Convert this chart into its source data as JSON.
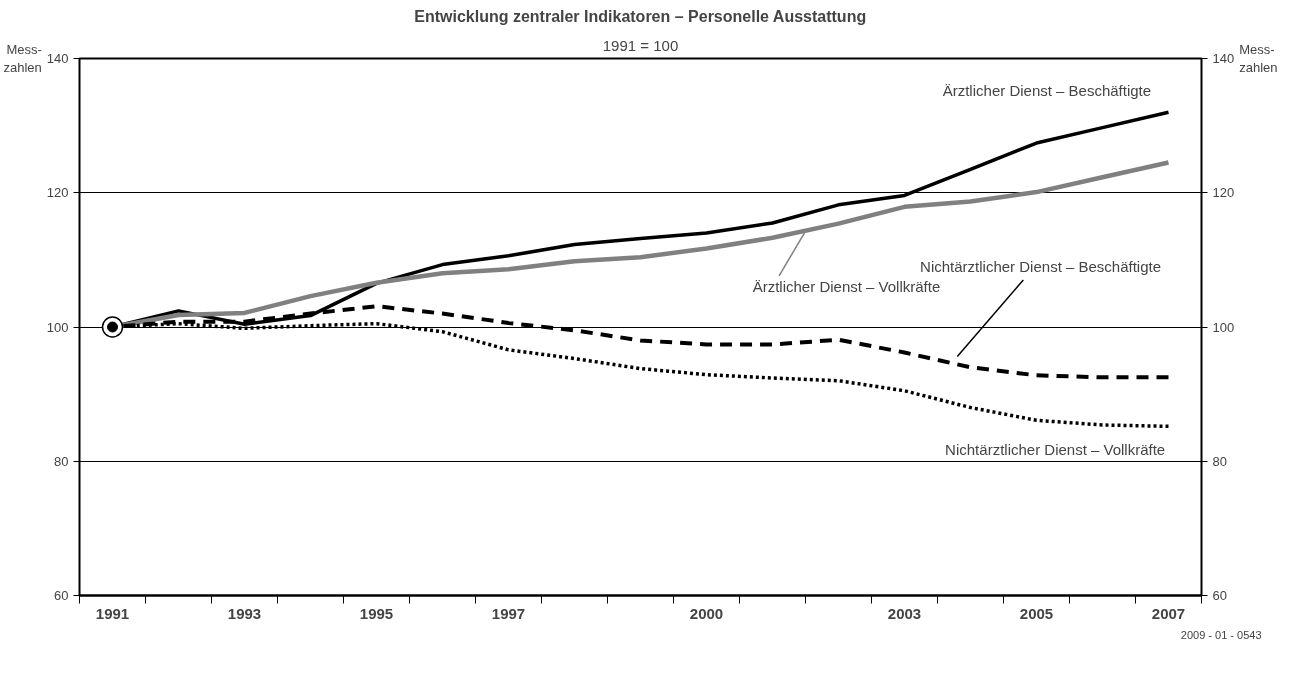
{
  "chart_data": {
    "type": "line",
    "title": "Entwicklung zentraler Indikatoren – Personelle Ausstattung",
    "subtitle": "1991 = 100",
    "ylabel": "Mess-\nzahlen",
    "y2label": "Mess-\nzahlen",
    "x": [
      1991,
      1992,
      1993,
      1994,
      1995,
      1996,
      1997,
      1998,
      1999,
      2000,
      2001,
      2002,
      2003,
      2004,
      2005,
      2006,
      2007
    ],
    "series": [
      {
        "name": "Ärztlicher Dienst  – Beschäftigte",
        "color": "#000000",
        "line_style": "solid",
        "values": [
          100,
          102.4,
          100.4,
          101.7,
          106.5,
          109.3,
          110.6,
          112.3,
          113.2,
          114,
          115.5,
          118.2,
          119.6,
          123.5,
          127.4,
          129.7,
          132
        ]
      },
      {
        "name": "Ärztlicher Dienst  – Vollkräfte",
        "color": "#808080",
        "line_style": "solid",
        "values": [
          100,
          101.8,
          102.1,
          104.6,
          106.6,
          108,
          108.6,
          109.8,
          110.4,
          111.7,
          113.3,
          115.4,
          117.9,
          118.7,
          120.1,
          122.3,
          124.5
        ]
      },
      {
        "name": "Nichtärztlicher Dienst  – Beschäftigte",
        "color": "#000000",
        "line_style": "dashed",
        "values": [
          100,
          100.8,
          100.8,
          102,
          103.1,
          102,
          100.6,
          99.5,
          98,
          97.4,
          97.4,
          98.1,
          96.2,
          94,
          92.8,
          92.5,
          92.5
        ]
      },
      {
        "name": "Nichtärztlicher Dienst – Vollkräfte",
        "color": "#000000",
        "line_style": "dotted",
        "values": [
          100,
          100.5,
          99.8,
          100.2,
          100.5,
          99.3,
          96.6,
          95.3,
          93.8,
          92.9,
          92.4,
          92,
          90.5,
          88,
          86.1,
          85.4,
          85.2
        ]
      },
      {
        "type": "scatter",
        "marker": "circle",
        "color": "#000000",
        "x": [
          1991
        ],
        "values": [
          100
        ]
      }
    ],
    "xlim": [
      1990.5,
      2007.5
    ],
    "xticks": [
      1991,
      1993,
      1995,
      1997,
      2000,
      2003,
      2005,
      2007,
      {
        "value": 1990.5,
        "label": null
      },
      {
        "value": 1991.5,
        "label": null
      },
      {
        "value": 1992.5,
        "label": null
      },
      {
        "value": 1993.5,
        "label": null
      },
      {
        "value": 1994.5,
        "label": null
      },
      {
        "value": 1995.5,
        "label": null
      },
      {
        "value": 1996.5,
        "label": null
      },
      {
        "value": 1997.5,
        "label": null
      },
      {
        "value": 1998.5,
        "label": null
      },
      {
        "value": 1999.5,
        "label": null
      },
      {
        "value": 2000.5,
        "label": null
      },
      {
        "value": 2001.5,
        "label": null
      },
      {
        "value": 2002.5,
        "label": null
      },
      {
        "value": 2003.5,
        "label": null
      },
      {
        "value": 2004.5,
        "label": null
      },
      {
        "value": 2005.5,
        "label": null
      },
      {
        "value": 2006.5,
        "label": null
      },
      {
        "value": 2007.5,
        "label": null
      }
    ],
    "ylim": [
      60,
      140
    ],
    "yticks": [
      60,
      80,
      100,
      120,
      140
    ],
    "y2lim": [
      60,
      140
    ],
    "y2ticks": [
      60,
      80,
      100,
      120,
      140
    ],
    "grid": "y",
    "annotations": [
      "2009 - 01 - 0543"
    ]
  }
}
